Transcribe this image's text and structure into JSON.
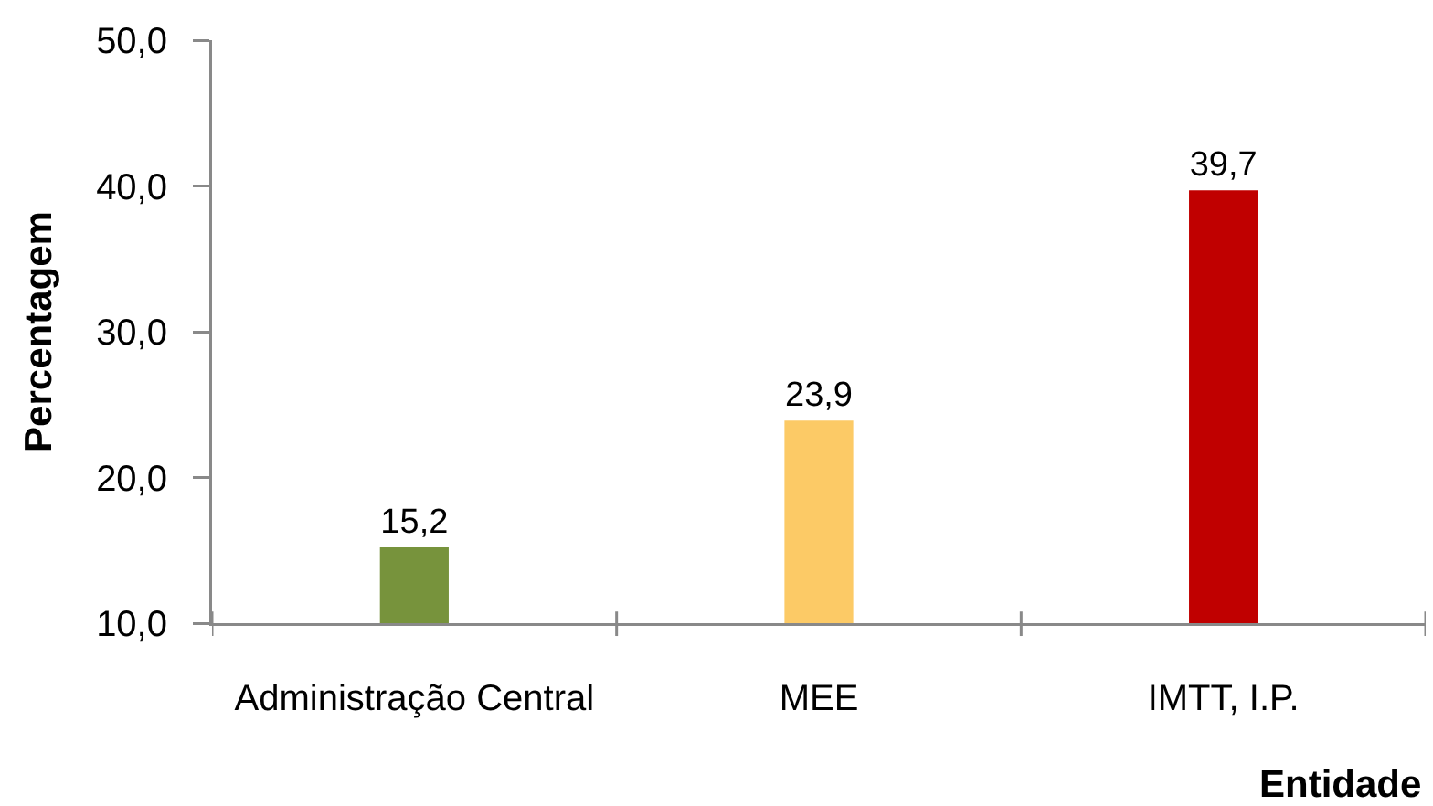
{
  "chart_data": {
    "type": "bar",
    "xlabel": "Entidade",
    "ylabel": "Percentagem",
    "categories": [
      "Administração Central",
      "MEE",
      "IMTT, I.P."
    ],
    "values": [
      15.2,
      23.9,
      39.7
    ],
    "colors": [
      "#77933c",
      "#fcca66",
      "#c00000"
    ],
    "value_labels": [
      "15,2",
      "23,9",
      "39,7"
    ],
    "ylim": [
      10,
      50
    ],
    "yticks": [
      {
        "value": 10,
        "label": "10,0"
      },
      {
        "value": 20,
        "label": "20,0"
      },
      {
        "value": 30,
        "label": "30,0"
      },
      {
        "value": 40,
        "label": "40,0"
      },
      {
        "value": 50,
        "label": "50,0"
      }
    ],
    "grid": false
  }
}
